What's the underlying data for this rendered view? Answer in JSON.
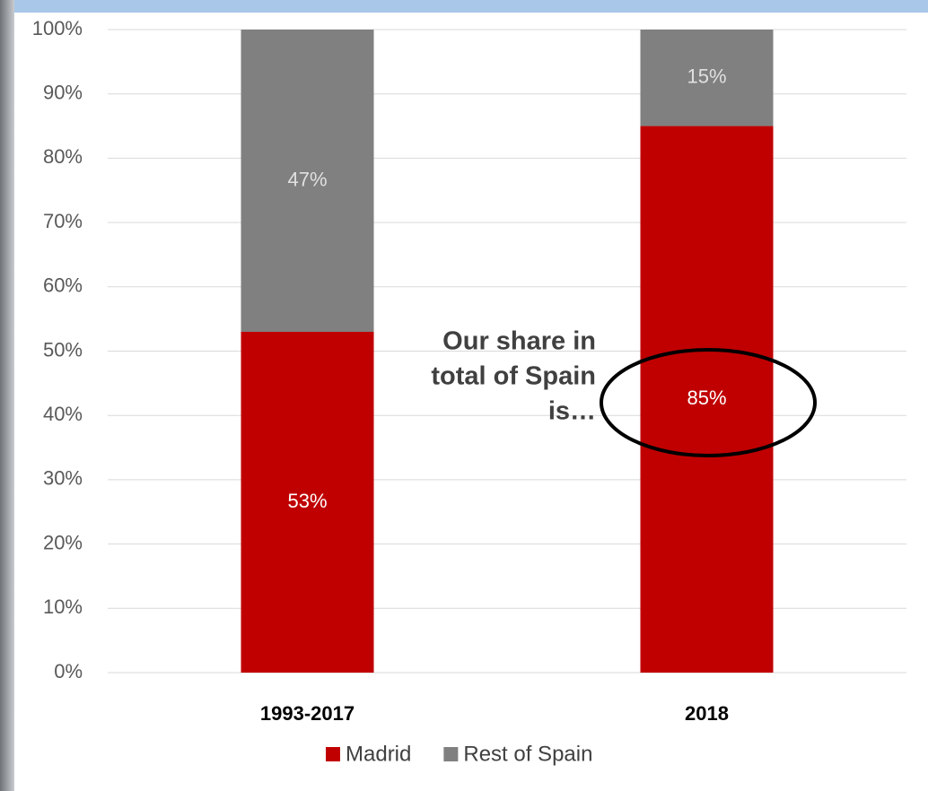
{
  "chart_data": {
    "type": "stacked_bar",
    "categories": [
      "1993-2017",
      "2018"
    ],
    "series": [
      {
        "name": "Madrid",
        "color": "#c00000",
        "label_color": "#ffffff",
        "values": [
          53,
          85
        ],
        "value_labels": [
          "53%",
          "85%"
        ]
      },
      {
        "name": "Rest of Spain",
        "color": "#808080",
        "label_color": "#e0e0e0",
        "values": [
          47,
          15
        ],
        "value_labels": [
          "47%",
          "15%"
        ]
      }
    ],
    "ylim": [
      0,
      100
    ],
    "yticks": [
      {
        "value": 0,
        "label": "0%"
      },
      {
        "value": 10,
        "label": "10%"
      },
      {
        "value": 20,
        "label": "20%"
      },
      {
        "value": 30,
        "label": "30%"
      },
      {
        "value": 40,
        "label": "40%"
      },
      {
        "value": 50,
        "label": "50%"
      },
      {
        "value": 60,
        "label": "60%"
      },
      {
        "value": 70,
        "label": "70%"
      },
      {
        "value": 80,
        "label": "80%"
      },
      {
        "value": 90,
        "label": "90%"
      },
      {
        "value": 100,
        "label": "100%"
      }
    ],
    "grid": true,
    "legend": "bottom",
    "annotation": [
      "Our share in",
      "total of Spain",
      "is…"
    ]
  }
}
